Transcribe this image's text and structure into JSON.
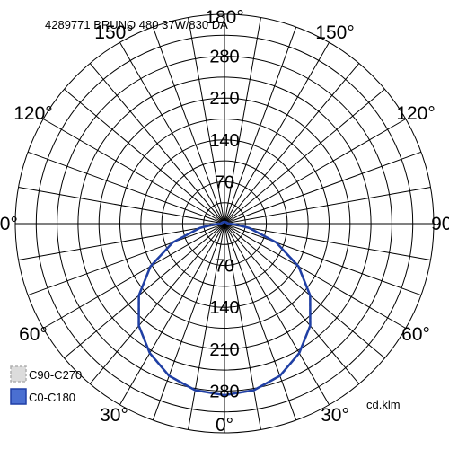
{
  "chart_data": {
    "type": "polar",
    "title": "4289771 BRUNO 480 37W/830 DA",
    "unit": "cd.klm",
    "radial_ticks": [
      70,
      140,
      210,
      280
    ],
    "rmax": 350,
    "angle_labels": [
      "180°",
      "150°",
      "120°",
      "90°",
      "60°",
      "30°",
      "0°"
    ],
    "grid": true,
    "series": [
      {
        "name": "C90-C270",
        "color": "#c8c8c8",
        "style": "dashed",
        "angles": [
          0,
          10,
          20,
          30,
          40,
          50,
          60,
          70,
          80,
          85,
          90,
          95,
          100,
          110,
          120,
          135,
          150,
          165,
          180
        ],
        "values": [
          287,
          283,
          271,
          250,
          223,
          187,
          143,
          92,
          42,
          20,
          8,
          6,
          5,
          4,
          4,
          3,
          3,
          3,
          3
        ]
      },
      {
        "name": "C0-C180",
        "color": "#1f3fa5",
        "style": "solid",
        "angles": [
          0,
          10,
          20,
          30,
          40,
          50,
          60,
          70,
          80,
          85,
          90,
          95,
          100,
          110,
          120,
          135,
          150,
          165,
          180
        ],
        "values": [
          287,
          283,
          271,
          250,
          223,
          187,
          143,
          92,
          42,
          20,
          8,
          6,
          5,
          4,
          4,
          3,
          3,
          3,
          3
        ]
      }
    ]
  }
}
